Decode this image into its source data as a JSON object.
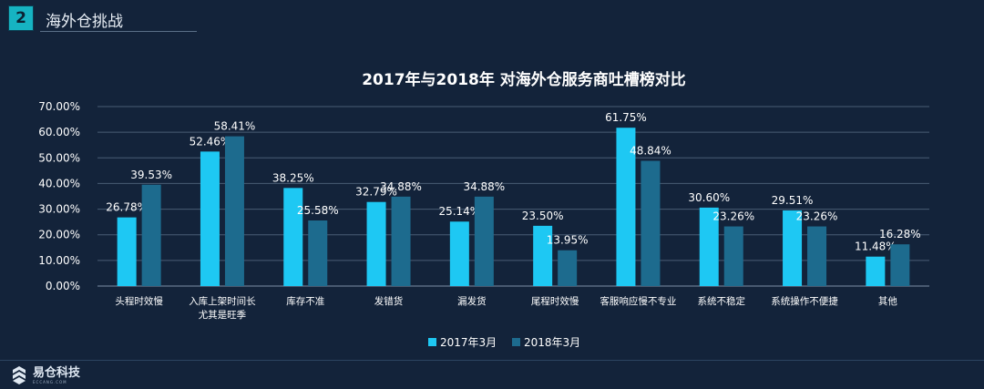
{
  "header": {
    "section_number": "2",
    "section_title": "海外仓挑战"
  },
  "brand": {
    "name": "易仓科技",
    "sub": "ECCANG.COM"
  },
  "colors": {
    "background": "#13233a",
    "series_2017": "#1ec8f3",
    "series_2018": "#1d6b8e",
    "badge": "#16b3c2",
    "gridline": "#4a5d74"
  },
  "chart_data": {
    "type": "bar",
    "title": "2017年与2018年 对海外仓服务商吐槽榜对比",
    "xlabel": "",
    "ylabel": "",
    "ylim": [
      0,
      70
    ],
    "yticks": [
      "0.00%",
      "10.00%",
      "20.00%",
      "30.00%",
      "40.00%",
      "50.00%",
      "60.00%",
      "70.00%"
    ],
    "categories": [
      [
        "头程时效慢"
      ],
      [
        "入库上架时间长",
        "尤其是旺季"
      ],
      [
        "库存不准"
      ],
      [
        "发错货"
      ],
      [
        "漏发货"
      ],
      [
        "尾程时效慢"
      ],
      [
        "客服响应慢不专业"
      ],
      [
        "系统不稳定"
      ],
      [
        "系统操作不便捷"
      ],
      [
        "其他"
      ]
    ],
    "series": [
      {
        "name": "2017年3月",
        "values": [
          26.78,
          52.46,
          38.25,
          32.79,
          25.14,
          23.5,
          61.75,
          30.6,
          29.51,
          11.48
        ],
        "labels": [
          "26.78%",
          "52.46%",
          "38.25%",
          "32.79%",
          "25.14%",
          "23.50%",
          "61.75%",
          "30.60%",
          "29.51%",
          "11.48%"
        ]
      },
      {
        "name": "2018年3月",
        "values": [
          39.53,
          58.41,
          25.58,
          34.88,
          34.88,
          13.95,
          48.84,
          23.26,
          23.26,
          16.28
        ],
        "labels": [
          "39.53%",
          "58.41%",
          "25.58%",
          "34.88%",
          "34.88%",
          "13.95%",
          "48.84%",
          "23.26%",
          "23.26%",
          "16.28%"
        ]
      }
    ],
    "grid": true,
    "legend": "bottom-center"
  }
}
